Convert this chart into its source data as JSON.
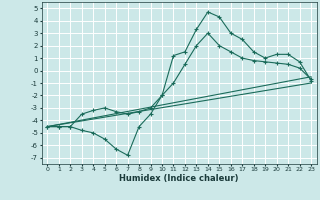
{
  "title": "",
  "xlabel": "Humidex (Indice chaleur)",
  "xlim": [
    -0.5,
    23.5
  ],
  "ylim": [
    -7.5,
    5.5
  ],
  "xticks": [
    0,
    1,
    2,
    3,
    4,
    5,
    6,
    7,
    8,
    9,
    10,
    11,
    12,
    13,
    14,
    15,
    16,
    17,
    18,
    19,
    20,
    21,
    22,
    23
  ],
  "yticks": [
    5,
    4,
    3,
    2,
    1,
    0,
    -1,
    -2,
    -3,
    -4,
    -5,
    -6,
    -7
  ],
  "bg_color": "#cce8e8",
  "line_color": "#1a6b5a",
  "grid_color": "#ffffff",
  "lines": [
    {
      "x": [
        0,
        1,
        2,
        3,
        4,
        5,
        6,
        7,
        8,
        9,
        10,
        11,
        12,
        13,
        14,
        15,
        16,
        17,
        18,
        19,
        20,
        21,
        22,
        23
      ],
      "y": [
        -4.5,
        -4.5,
        -4.5,
        -4.8,
        -5.0,
        -5.5,
        -6.3,
        -6.8,
        -4.5,
        -3.5,
        -2.0,
        1.2,
        1.5,
        3.3,
        4.7,
        4.3,
        3.0,
        2.5,
        1.5,
        1.0,
        1.3,
        1.3,
        0.7,
        -0.8
      ],
      "marker": true
    },
    {
      "x": [
        0,
        1,
        2,
        3,
        4,
        5,
        6,
        7,
        8,
        9,
        10,
        11,
        12,
        13,
        14,
        15,
        16,
        17,
        18,
        19,
        20,
        21,
        22,
        23
      ],
      "y": [
        -4.5,
        -4.5,
        -4.5,
        -3.5,
        -3.2,
        -3.0,
        -3.3,
        -3.5,
        -3.3,
        -3.0,
        -2.0,
        -1.0,
        0.5,
        2.0,
        3.0,
        2.0,
        1.5,
        1.0,
        0.8,
        0.7,
        0.6,
        0.5,
        0.2,
        -0.7
      ],
      "marker": true
    },
    {
      "x": [
        0,
        23
      ],
      "y": [
        -4.5,
        -0.5
      ],
      "marker": false
    },
    {
      "x": [
        0,
        23
      ],
      "y": [
        -4.5,
        -1.0
      ],
      "marker": false
    }
  ]
}
